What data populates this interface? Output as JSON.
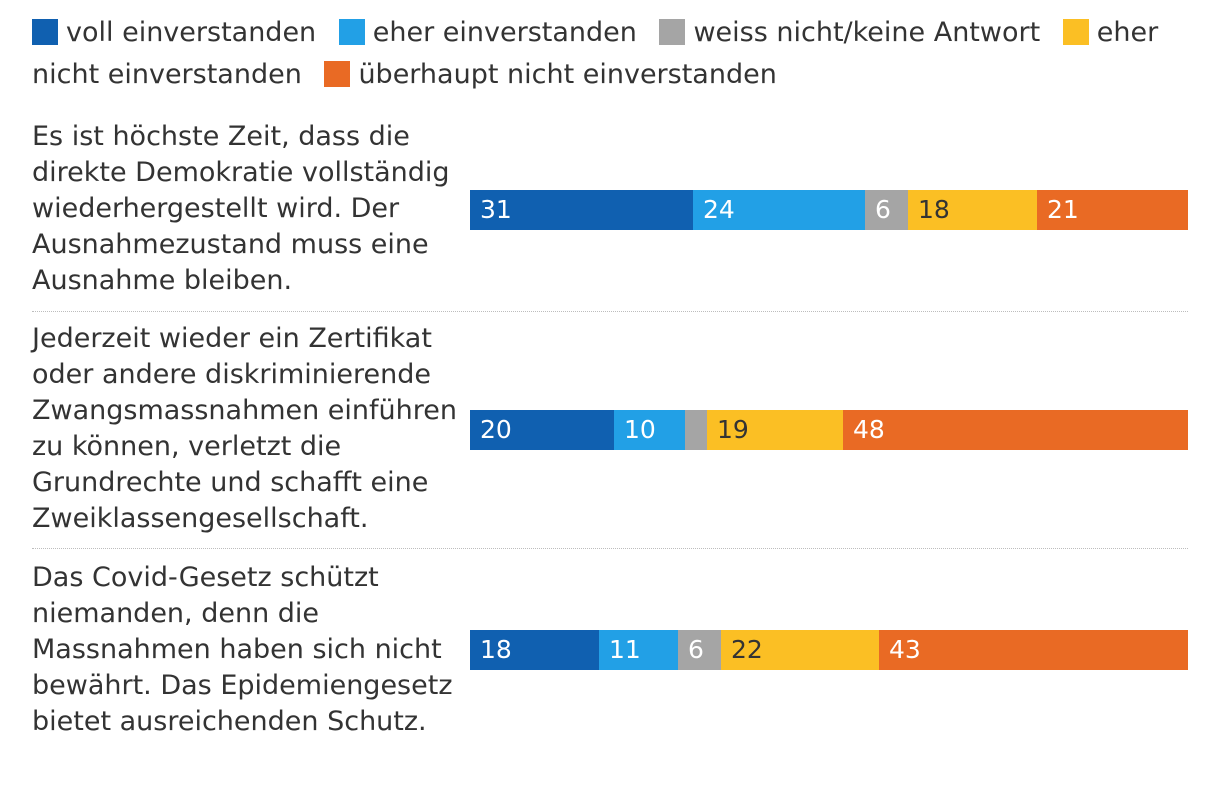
{
  "chart_data": {
    "type": "bar",
    "orientation": "horizontal",
    "stacked": true,
    "legend_position": "top",
    "series": [
      {
        "name": "voll einverstanden",
        "color": "#1060b0",
        "label_color": "#ffffff",
        "values": [
          31,
          20,
          18
        ]
      },
      {
        "name": "eher einverstanden",
        "color": "#22a0e6",
        "label_color": "#ffffff",
        "values": [
          24,
          10,
          11
        ]
      },
      {
        "name": "weiss nicht/keine Antwort",
        "color": "#a5a5a5",
        "label_color": "#ffffff",
        "values": [
          6,
          3,
          6
        ]
      },
      {
        "name": "eher nicht einverstanden",
        "color": "#fbbf24",
        "label_color": "#333333",
        "values": [
          18,
          19,
          22
        ]
      },
      {
        "name": "überhaupt nicht einverstanden",
        "color": "#e96a24",
        "label_color": "#ffffff",
        "values": [
          21,
          48,
          43
        ]
      }
    ],
    "data_labels": [
      [
        "31",
        "24",
        "6",
        "18",
        "21"
      ],
      [
        "20",
        "10",
        "",
        "19",
        "48"
      ],
      [
        "18",
        "11",
        "6",
        "22",
        "43"
      ]
    ],
    "categories": [
      "Es ist höchste Zeit, dass die direkte Demokratie vollständig wiederhergestellt wird. Der Ausnahmezustand muss eine Ausnahme bleiben.",
      "Jederzeit wieder ein Zertifikat oder andere diskriminierende Zwangsmassnahmen einführen zu können, verletzt die Grundrechte und schafft eine Zweiklassengesellschaft.",
      "Das Covid-Gesetz schützt niemanden, denn die Massnahmen haben sich nicht bewährt. Das Epidemiengesetz bietet ausreichenden Schutz."
    ],
    "xlim": [
      0,
      100
    ],
    "title": "",
    "xlabel": "",
    "ylabel": ""
  }
}
